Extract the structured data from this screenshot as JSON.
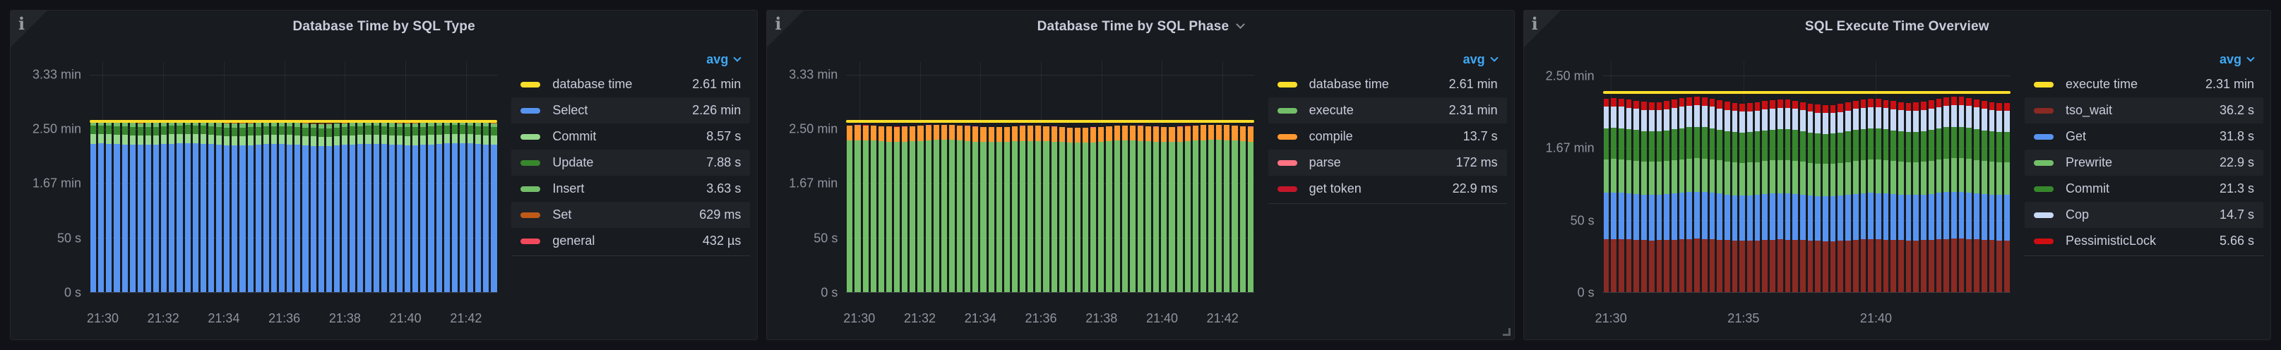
{
  "dashboard": {
    "background_color": "#111217",
    "panel_background_color": "#181B1F",
    "accent_blue": "#3FA9F5"
  },
  "panels": [
    {
      "title": "Database Time by SQL Type",
      "has_title_dropdown": false,
      "has_resize_handle": false,
      "legend": {
        "header": "avg",
        "items": [
          {
            "label": "database time",
            "value": "2.61 min",
            "color": "#FADE2A"
          },
          {
            "label": "Select",
            "value": "2.26 min",
            "color": "#5794F2"
          },
          {
            "label": "Commit",
            "value": "8.57 s",
            "color": "#96D98D"
          },
          {
            "label": "Update",
            "value": "7.88 s",
            "color": "#37872D"
          },
          {
            "label": "Insert",
            "value": "3.63 s",
            "color": "#73BF69"
          },
          {
            "label": "Set",
            "value": "629 ms",
            "color": "#BE5A17"
          },
          {
            "label": "general",
            "value": "432 µs",
            "color": "#F2495C"
          }
        ]
      }
    },
    {
      "title": "Database Time by SQL Phase",
      "has_title_dropdown": true,
      "has_resize_handle": true,
      "legend": {
        "header": "avg",
        "items": [
          {
            "label": "database time",
            "value": "2.61 min",
            "color": "#FADE2A"
          },
          {
            "label": "execute",
            "value": "2.31 min",
            "color": "#73BF69"
          },
          {
            "label": "compile",
            "value": "13.7 s",
            "color": "#FF9830"
          },
          {
            "label": "parse",
            "value": "172 ms",
            "color": "#FF7383"
          },
          {
            "label": "get token",
            "value": "22.9 ms",
            "color": "#C4162A"
          }
        ]
      }
    },
    {
      "title": "SQL Execute Time Overview",
      "has_title_dropdown": false,
      "has_resize_handle": false,
      "legend": {
        "header": "avg",
        "items": [
          {
            "label": "execute time",
            "value": "2.31 min",
            "color": "#FADE2A"
          },
          {
            "label": "tso_wait",
            "value": "36.2 s",
            "color": "#8A2A23"
          },
          {
            "label": "Get",
            "value": "31.8 s",
            "color": "#5794F2"
          },
          {
            "label": "Prewrite",
            "value": "22.9 s",
            "color": "#73BF69"
          },
          {
            "label": "Commit",
            "value": "21.3 s",
            "color": "#37872D"
          },
          {
            "label": "Cop",
            "value": "14.7 s",
            "color": "#C7D9F5"
          },
          {
            "label": "PessimisticLock",
            "value": "5.66 s",
            "color": "#CF0E12"
          }
        ]
      }
    }
  ],
  "chart_data": [
    {
      "type": "bar",
      "stacked": true,
      "title": "Database Time by SQL Type",
      "unit": "seconds",
      "legend_position": "right",
      "grid": true,
      "ylim": [
        0,
        212
      ],
      "bar_count": 52,
      "x_ticks": [
        "21:30",
        "21:32",
        "21:34",
        "21:36",
        "21:38",
        "21:40",
        "21:42"
      ],
      "y_ticks": [
        {
          "value": 200,
          "label": "3.33 min"
        },
        {
          "value": 150,
          "label": "2.50 min"
        },
        {
          "value": 100,
          "label": "1.67 min"
        },
        {
          "value": 50,
          "label": "50 s"
        },
        {
          "value": 0,
          "label": "0 s"
        }
      ],
      "series": [
        {
          "name": "Select",
          "avg_seconds": 135.6,
          "color": "#5794F2"
        },
        {
          "name": "Commit",
          "avg_seconds": 8.57,
          "color": "#96D98D"
        },
        {
          "name": "Update",
          "avg_seconds": 7.88,
          "color": "#37872D"
        },
        {
          "name": "Insert",
          "avg_seconds": 3.63,
          "color": "#73BF69"
        },
        {
          "name": "Set",
          "avg_seconds": 0.629,
          "color": "#BE5A17"
        },
        {
          "name": "general",
          "avg_seconds": 0.000432,
          "color": "#F2495C"
        }
      ],
      "line_series": {
        "name": "database time",
        "avg_seconds": 156.6,
        "color": "#FADE2A"
      }
    },
    {
      "type": "bar",
      "stacked": true,
      "title": "Database Time by SQL Phase",
      "unit": "seconds",
      "legend_position": "right",
      "grid": true,
      "ylim": [
        0,
        212
      ],
      "bar_count": 52,
      "x_ticks": [
        "21:30",
        "21:32",
        "21:34",
        "21:36",
        "21:38",
        "21:40",
        "21:42"
      ],
      "y_ticks": [
        {
          "value": 200,
          "label": "3.33 min"
        },
        {
          "value": 150,
          "label": "2.50 min"
        },
        {
          "value": 100,
          "label": "1.67 min"
        },
        {
          "value": 50,
          "label": "50 s"
        },
        {
          "value": 0,
          "label": "0 s"
        }
      ],
      "series": [
        {
          "name": "execute",
          "avg_seconds": 138.6,
          "color": "#73BF69"
        },
        {
          "name": "compile",
          "avg_seconds": 13.7,
          "color": "#FF9830"
        },
        {
          "name": "parse",
          "avg_seconds": 0.172,
          "color": "#FF7383"
        },
        {
          "name": "get token",
          "avg_seconds": 0.0229,
          "color": "#C4162A"
        }
      ],
      "line_series": {
        "name": "database time",
        "avg_seconds": 156.6,
        "color": "#FADE2A"
      }
    },
    {
      "type": "bar",
      "stacked": true,
      "title": "SQL Execute Time Overview",
      "unit": "seconds",
      "legend_position": "right",
      "grid": true,
      "ylim": [
        0,
        160
      ],
      "bar_count": 54,
      "x_ticks": [
        "21:30",
        "21:35",
        "21:40"
      ],
      "y_ticks": [
        {
          "value": 150,
          "label": "2.50 min"
        },
        {
          "value": 100,
          "label": "1.67 min"
        },
        {
          "value": 50,
          "label": "50 s"
        },
        {
          "value": 0,
          "label": "0 s"
        }
      ],
      "series": [
        {
          "name": "tso_wait",
          "avg_seconds": 36.2,
          "color": "#8A2A23"
        },
        {
          "name": "Get",
          "avg_seconds": 31.8,
          "color": "#5794F2"
        },
        {
          "name": "Prewrite",
          "avg_seconds": 22.9,
          "color": "#73BF69"
        },
        {
          "name": "Commit",
          "avg_seconds": 21.3,
          "color": "#37872D"
        },
        {
          "name": "Cop",
          "avg_seconds": 14.7,
          "color": "#C7D9F5"
        },
        {
          "name": "PessimisticLock",
          "avg_seconds": 5.66,
          "color": "#CF0E12"
        }
      ],
      "line_series": {
        "name": "execute time",
        "avg_seconds": 138.6,
        "color": "#FADE2A"
      }
    }
  ]
}
